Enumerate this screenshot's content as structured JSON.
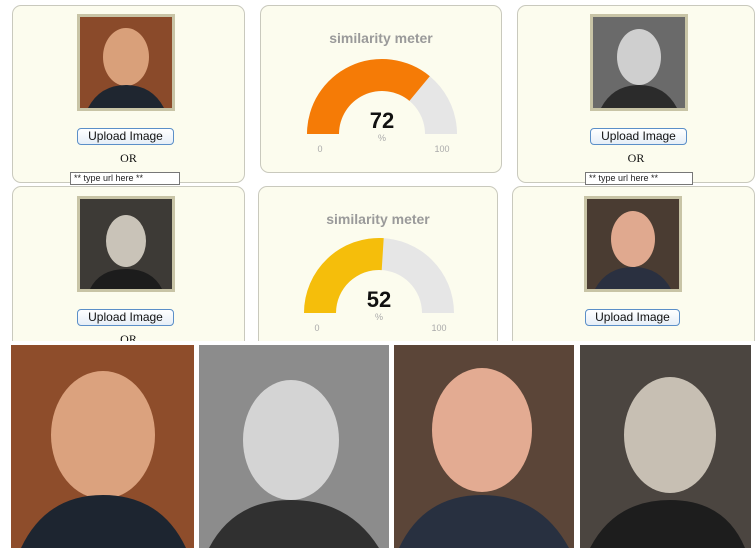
{
  "meter_title": "similarity meter",
  "upload_label": "Upload Image",
  "or_label": "OR",
  "url_placeholder": "** type url here **",
  "meter1": {
    "value": 72,
    "display": "72",
    "unit": "%",
    "min": "0",
    "max": "100",
    "color": "#f57b06"
  },
  "meter2": {
    "value": 52,
    "display": "52",
    "unit": "%",
    "min": "0",
    "max": "100",
    "color": "#f5be0b"
  },
  "colors": {
    "card_bg": "#fcfcee",
    "track": "#e6e6e6",
    "button_border": "#5b8fc8"
  }
}
